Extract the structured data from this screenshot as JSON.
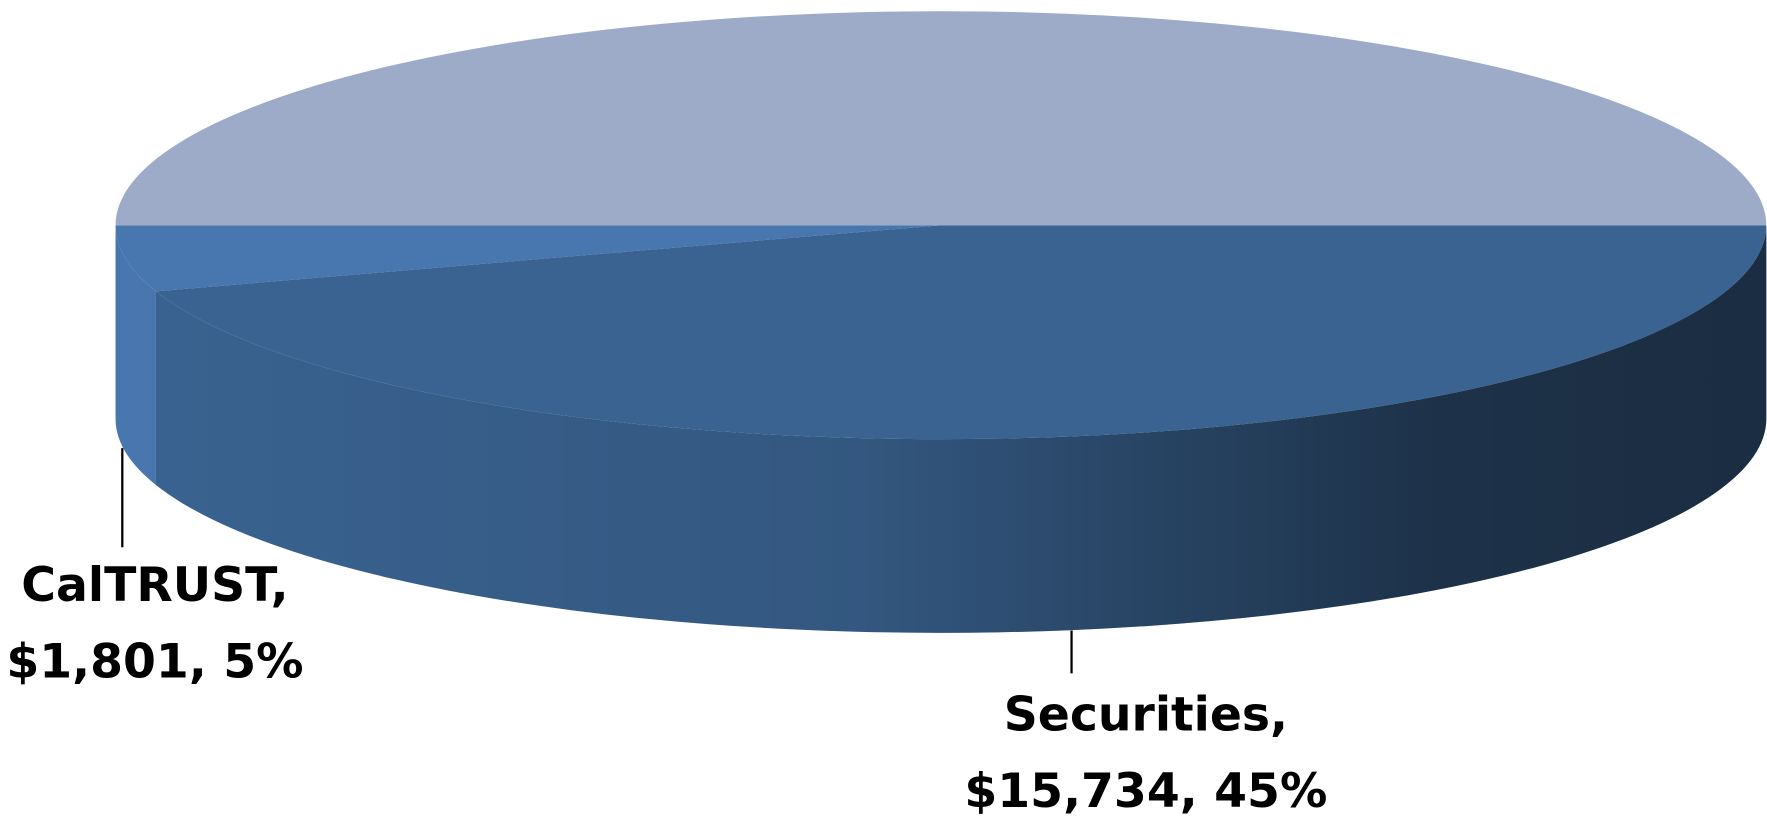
{
  "chart_data": {
    "type": "pie3d",
    "categories": [
      "CalTRUST,",
      "Securities,",
      null
    ],
    "values": [
      5,
      45,
      50
    ],
    "value_labels": [
      "$1,801, 5%",
      "$15,734, 45%",
      null
    ],
    "colors": [
      "#4876ae",
      "#3a6391",
      "#9dabc8"
    ]
  }
}
